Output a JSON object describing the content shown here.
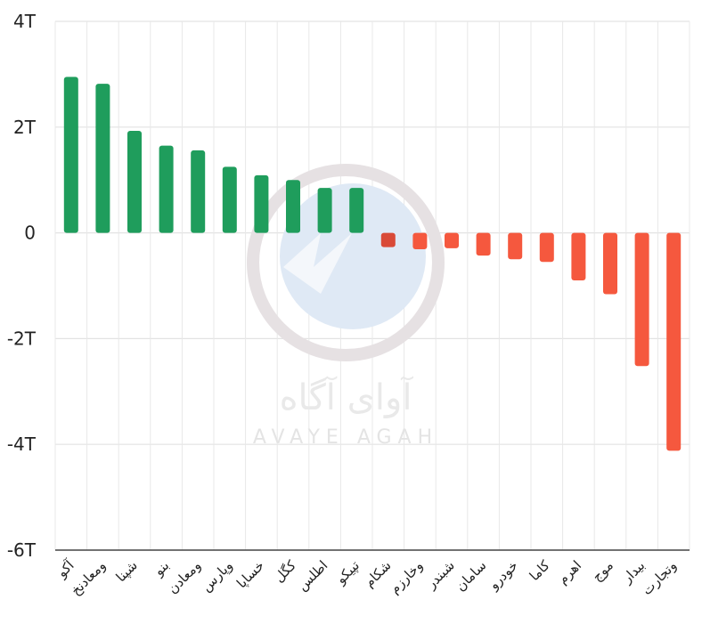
{
  "chart_data": {
    "type": "bar",
    "categories": [
      "آکو",
      "ومعادنخ",
      "شپنا",
      "بنو",
      "ومعادن",
      "وپارس",
      "خساپا",
      "کگل",
      "اطلس",
      "تپیکو",
      "شکام",
      "وخارزم",
      "شبندر",
      "سامان",
      "خودرو",
      "کاما",
      "اهرم",
      "موج",
      "بیدار",
      "وتجارت"
    ],
    "values": [
      2.95,
      2.82,
      1.93,
      1.65,
      1.56,
      1.25,
      1.09,
      1.0,
      0.85,
      0.85,
      -0.27,
      -0.31,
      -0.29,
      -0.43,
      -0.5,
      -0.55,
      -0.9,
      -1.16,
      -2.52,
      -4.12
    ],
    "ylim": [
      -6,
      4
    ],
    "y_ticks": [
      "4T",
      "2T",
      "0",
      "-2T",
      "-4T",
      "-6T"
    ],
    "grid": true,
    "colors": {
      "positive": "#1f9d5c",
      "negative": "#f5583e",
      "negative_small": "#d94a38"
    }
  },
  "watermark": {
    "text_fa": "آوای آگاه",
    "text_en": "AVAYE AGAH"
  }
}
